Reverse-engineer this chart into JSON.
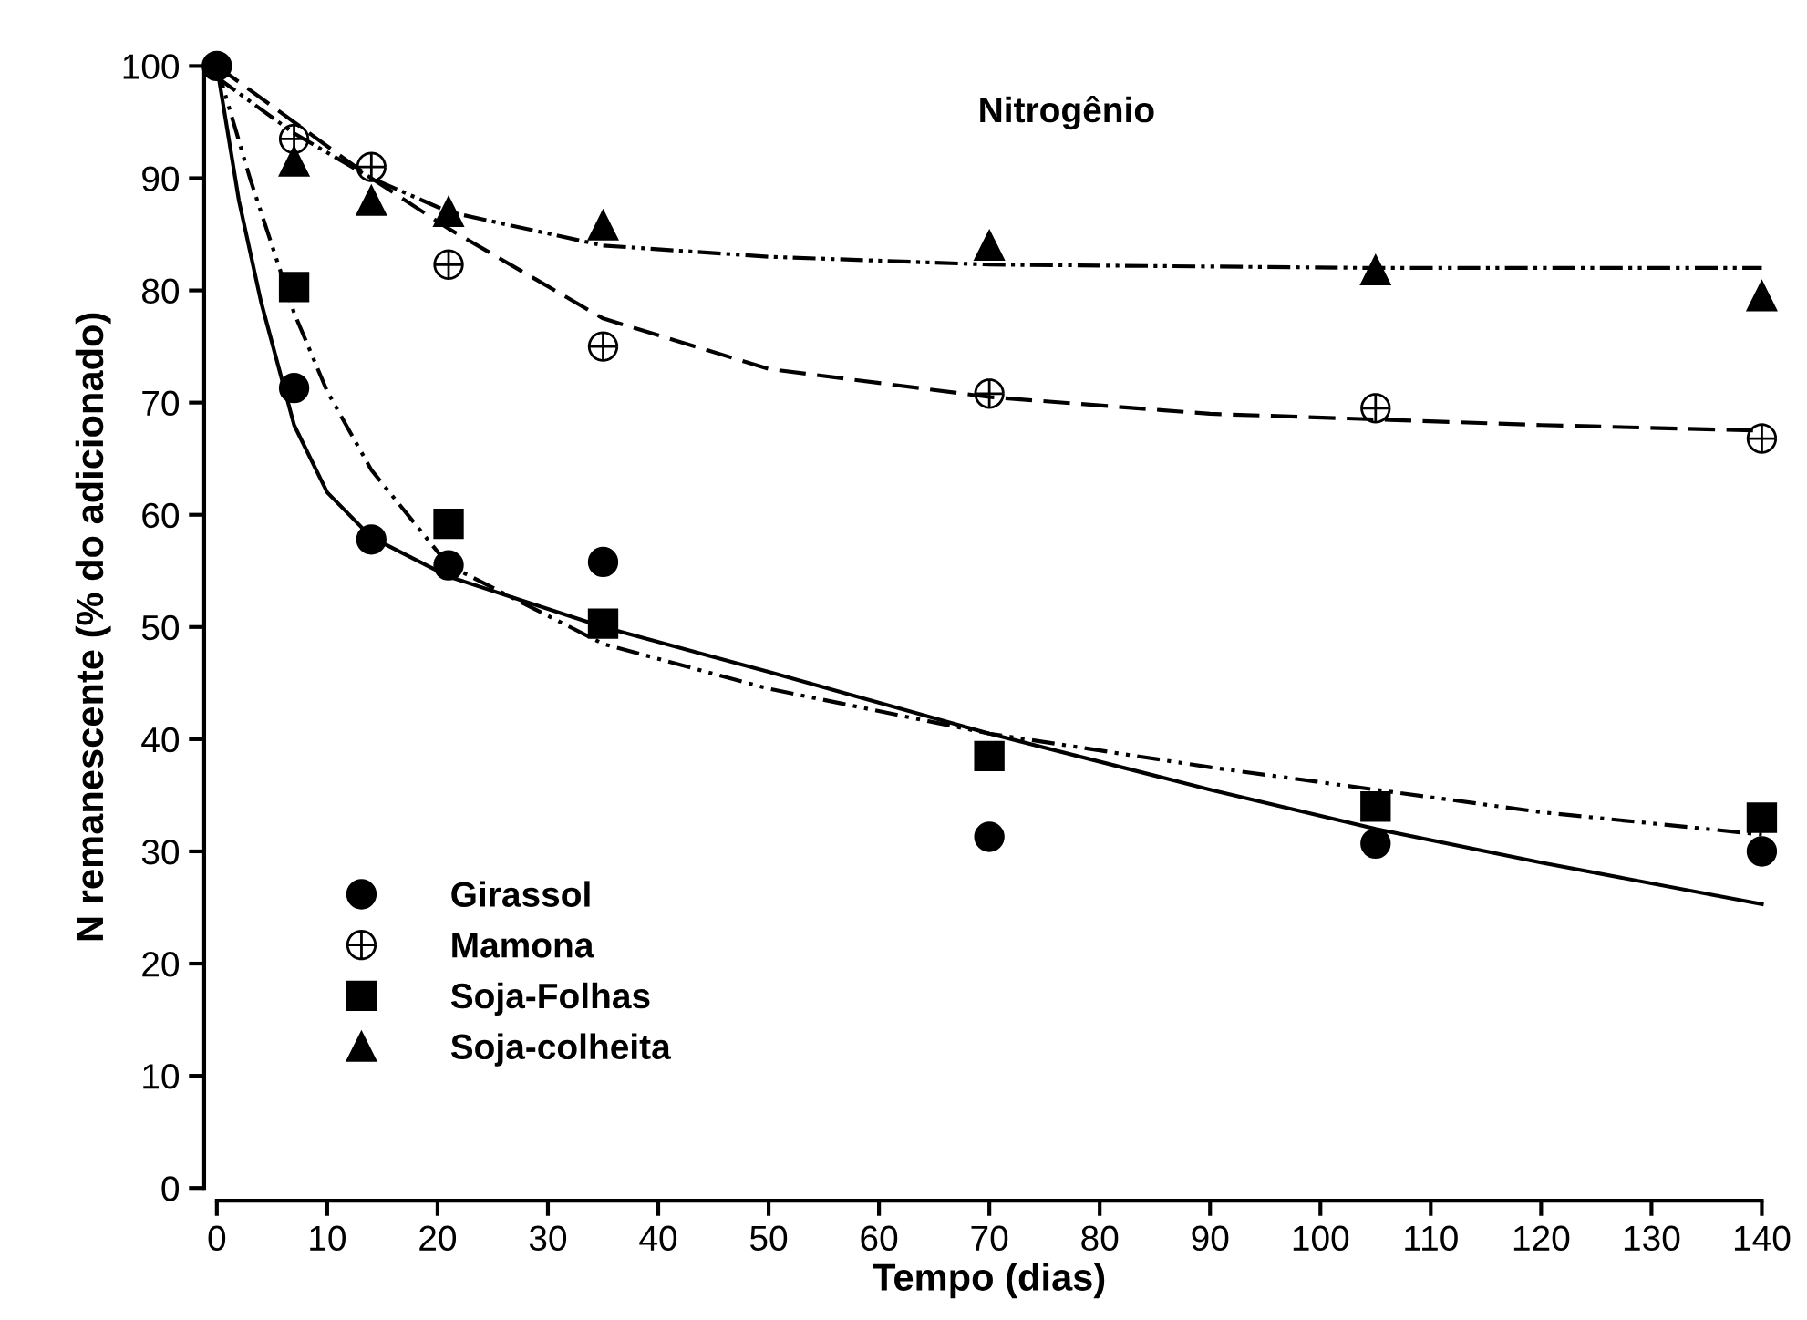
{
  "chart_data": {
    "type": "scatter",
    "title": "Nitrogênio",
    "xlabel": "Tempo (dias)",
    "ylabel": "N remanescente (% do adicionado)",
    "xlim": [
      0,
      140
    ],
    "ylim": [
      0,
      100
    ],
    "xticks": [
      0,
      10,
      20,
      30,
      40,
      50,
      60,
      70,
      80,
      90,
      100,
      110,
      120,
      130,
      140
    ],
    "yticks": [
      0,
      10,
      20,
      30,
      40,
      50,
      60,
      70,
      80,
      90,
      100
    ],
    "legend": "bottom left",
    "grid": false,
    "series": [
      {
        "name": "Girassol",
        "color": "#000000",
        "marker": "circle",
        "x": [
          0,
          7,
          14,
          21,
          35,
          70,
          105,
          140
        ],
        "values": [
          100,
          71.3,
          57.8,
          55.5,
          55.8,
          31.3,
          30.7,
          30
        ]
      },
      {
        "name": "Mamona",
        "color": "#000000",
        "marker": "cross",
        "x": [
          7,
          14,
          21,
          35,
          70,
          105,
          140
        ],
        "values": [
          93.5,
          91,
          82.3,
          75,
          70.8,
          69.5,
          66.8
        ]
      },
      {
        "name": "Soja-Folhas",
        "color": "#000000",
        "marker": "square",
        "x": [
          7,
          21,
          35,
          70,
          105,
          140
        ],
        "values": [
          80.3,
          59.2,
          50.3,
          38.5,
          34,
          33
        ]
      },
      {
        "name": "Soja-colheita",
        "color": "#000000",
        "marker": "triangle",
        "x": [
          7,
          14,
          21,
          35,
          70,
          105,
          140
        ],
        "values": [
          91.5,
          88,
          87,
          85.8,
          84,
          81.8,
          79.5
        ]
      },
      {
        "type": "line",
        "color": "#000000",
        "line_style": "solid",
        "x": [
          0,
          2,
          4,
          7,
          10,
          14,
          21,
          35,
          50,
          70,
          90,
          105,
          120,
          140
        ],
        "values": [
          100,
          88,
          79,
          68,
          62,
          58,
          54.5,
          50,
          46,
          40.5,
          35.5,
          32,
          29,
          25.3
        ]
      },
      {
        "type": "line",
        "color": "#000000",
        "line_style": "dashdot",
        "x": [
          0,
          3,
          7,
          10,
          14,
          21,
          35,
          50,
          70,
          90,
          105,
          120,
          140
        ],
        "values": [
          100,
          90,
          78,
          71,
          64,
          55.5,
          48.5,
          44.5,
          40.5,
          37.5,
          35.5,
          33.5,
          31.5
        ]
      },
      {
        "type": "line",
        "color": "#000000",
        "line_style": "dashed",
        "x": [
          0,
          7,
          14,
          21,
          35,
          50,
          70,
          90,
          105,
          120,
          140
        ],
        "values": [
          100,
          95,
          90,
          85.5,
          77.5,
          73,
          70.5,
          69,
          68.5,
          68,
          67.5
        ]
      },
      {
        "type": "line",
        "color": "#000000",
        "line_style": "dotted",
        "x": [
          0,
          7,
          14,
          21,
          35,
          50,
          70,
          105,
          140
        ],
        "values": [
          99,
          94,
          90,
          87,
          84,
          83,
          82.3,
          82,
          82
        ]
      }
    ]
  }
}
